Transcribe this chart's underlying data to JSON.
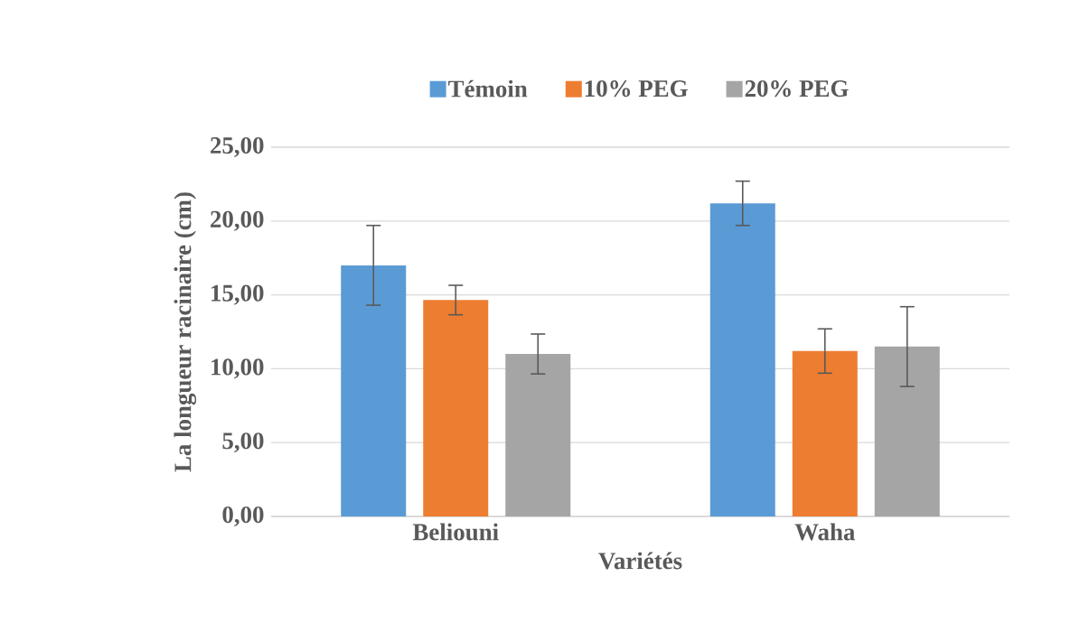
{
  "chart_data": {
    "type": "bar",
    "xlabel": "Variétés",
    "ylabel": "La longueur racinaire (cm)",
    "categories": [
      "Beliouni",
      "Waha"
    ],
    "series": [
      {
        "name": "Témoin",
        "color": "#5b9bd5",
        "values": [
          17.0,
          21.2
        ],
        "errors": [
          2.7,
          1.5
        ]
      },
      {
        "name": "10% PEG",
        "color": "#ed7d31",
        "values": [
          14.65,
          11.2
        ],
        "errors": [
          1.0,
          1.5
        ]
      },
      {
        "name": "20% PEG",
        "color": "#a5a5a5",
        "values": [
          11.0,
          11.5
        ],
        "errors": [
          1.35,
          2.7
        ]
      }
    ],
    "ylim": [
      0,
      25
    ],
    "yticks": [
      {
        "value": 0,
        "label": "0,00"
      },
      {
        "value": 5,
        "label": "5,00"
      },
      {
        "value": 10,
        "label": "10,00"
      },
      {
        "value": 15,
        "label": "15,00"
      },
      {
        "value": 20,
        "label": "20,00"
      },
      {
        "value": 25,
        "label": "25,00"
      }
    ],
    "grid": "y",
    "legend": "top"
  }
}
